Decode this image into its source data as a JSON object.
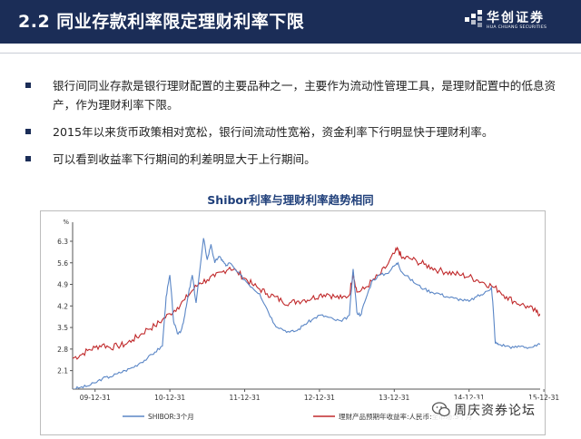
{
  "slide": {
    "title": "2.2 同业存款利率限定理财利率下限",
    "logo": {
      "name": "华创证券",
      "subtitle": "HUA CHUANG SECURITIES"
    },
    "bullets": [
      "银行间同业存款是银行理财配置的主要品种之一，主要作为流动性管理工具，是理财配置中的低息资产，作为理财利率下限。",
      "2015年以来货币政策相对宽松，银行间流动性宽裕，资金利率下行明显快于理财利率。",
      "可以看到收益率下行期间的利差明显大于上行期间。"
    ],
    "watermark": "周庆资券论坛"
  },
  "chart_data": {
    "type": "line",
    "title": "Shibor利率与理财利率趋势相同",
    "ylabel": "%",
    "ylim": [
      1.5,
      6.8
    ],
    "yticks": [
      "6.3",
      "5.6",
      "4.9",
      "4.2",
      "3.5",
      "2.8",
      "2.1"
    ],
    "ytick_values": [
      6.3,
      5.6,
      4.9,
      4.2,
      3.5,
      2.8,
      2.1
    ],
    "xlim": [
      2009.7,
      2015.95
    ],
    "xticks": [
      "09-12-31",
      "10-12-31",
      "11-12-31",
      "12-12-31",
      "13-12-31",
      "14-12-31",
      "15-12-31"
    ],
    "xtick_values": [
      2010.0,
      2011.0,
      2012.0,
      2013.0,
      2014.0,
      2015.0,
      2016.0
    ],
    "grid": false,
    "legend": "bottom",
    "colors": {
      "shibor": "#5a86c6",
      "wmp": "#c0292b"
    },
    "series": [
      {
        "name": "SHIBOR:3个月",
        "key": "shibor",
        "x": [
          2009.7,
          2009.8,
          2009.9,
          2010.0,
          2010.1,
          2010.2,
          2010.3,
          2010.4,
          2010.5,
          2010.6,
          2010.7,
          2010.8,
          2010.9,
          2010.95,
          2011.0,
          2011.05,
          2011.1,
          2011.15,
          2011.2,
          2011.25,
          2011.3,
          2011.35,
          2011.45,
          2011.5,
          2011.55,
          2011.6,
          2011.65,
          2011.7,
          2011.75,
          2011.8,
          2011.9,
          2012.0,
          2012.1,
          2012.2,
          2012.3,
          2012.4,
          2012.5,
          2012.6,
          2012.7,
          2012.8,
          2012.9,
          2013.0,
          2013.1,
          2013.2,
          2013.3,
          2013.4,
          2013.45,
          2013.5,
          2013.55,
          2013.6,
          2013.7,
          2013.8,
          2013.9,
          2014.0,
          2014.05,
          2014.1,
          2014.2,
          2014.3,
          2014.4,
          2014.5,
          2014.6,
          2014.7,
          2014.8,
          2014.9,
          2015.0,
          2015.1,
          2015.2,
          2015.3,
          2015.32,
          2015.35,
          2015.4,
          2015.5,
          2015.6,
          2015.7,
          2015.8,
          2015.9,
          2015.95
        ],
        "values": [
          1.5,
          1.55,
          1.6,
          1.7,
          1.85,
          1.9,
          2.0,
          2.1,
          2.2,
          2.35,
          2.5,
          2.7,
          2.9,
          4.5,
          5.2,
          3.7,
          3.3,
          3.4,
          3.9,
          4.6,
          5.2,
          4.3,
          6.4,
          5.7,
          6.2,
          5.6,
          5.8,
          5.7,
          5.5,
          5.6,
          5.3,
          5.05,
          4.8,
          4.6,
          4.1,
          3.6,
          3.45,
          3.35,
          3.4,
          3.6,
          3.75,
          3.9,
          3.85,
          3.75,
          3.7,
          3.9,
          5.4,
          4.0,
          3.9,
          4.3,
          5.0,
          5.2,
          5.25,
          5.5,
          5.6,
          5.3,
          5.1,
          4.9,
          4.75,
          4.65,
          4.6,
          4.5,
          4.45,
          4.4,
          4.35,
          4.5,
          4.6,
          4.8,
          4.2,
          3.0,
          2.95,
          2.9,
          2.85,
          2.9,
          2.85,
          2.9,
          2.95
        ]
      },
      {
        "name": "理财产品预期年收益率:人民币:全市场:3个月",
        "key": "wmp",
        "x": [
          2009.7,
          2009.8,
          2009.9,
          2010.0,
          2010.1,
          2010.2,
          2010.3,
          2010.4,
          2010.5,
          2010.6,
          2010.7,
          2010.8,
          2010.9,
          2011.0,
          2011.1,
          2011.2,
          2011.3,
          2011.4,
          2011.5,
          2011.6,
          2011.7,
          2011.8,
          2011.9,
          2012.0,
          2012.1,
          2012.2,
          2012.3,
          2012.4,
          2012.5,
          2012.6,
          2012.7,
          2012.8,
          2012.9,
          2013.0,
          2013.1,
          2013.2,
          2013.3,
          2013.4,
          2013.45,
          2013.5,
          2013.6,
          2013.7,
          2013.8,
          2013.9,
          2014.0,
          2014.05,
          2014.1,
          2014.2,
          2014.3,
          2014.4,
          2014.5,
          2014.6,
          2014.7,
          2014.8,
          2014.9,
          2015.0,
          2015.1,
          2015.2,
          2015.3,
          2015.4,
          2015.5,
          2015.6,
          2015.7,
          2015.8,
          2015.9,
          2015.95
        ],
        "values": [
          2.5,
          2.6,
          2.75,
          2.85,
          2.95,
          2.85,
          2.9,
          2.95,
          3.1,
          3.25,
          3.45,
          3.55,
          3.75,
          3.95,
          4.15,
          4.4,
          4.7,
          4.95,
          5.05,
          5.15,
          5.3,
          5.45,
          5.3,
          5.1,
          4.9,
          4.75,
          4.6,
          4.5,
          4.35,
          4.3,
          4.35,
          4.4,
          4.45,
          4.55,
          4.6,
          4.5,
          4.45,
          4.55,
          5.3,
          4.65,
          4.75,
          5.0,
          5.2,
          5.5,
          5.9,
          6.05,
          5.75,
          5.75,
          5.65,
          5.55,
          5.45,
          5.35,
          5.3,
          5.25,
          5.2,
          5.15,
          5.05,
          4.95,
          4.85,
          4.7,
          4.5,
          4.35,
          4.25,
          4.15,
          4.0,
          3.95
        ]
      }
    ]
  }
}
